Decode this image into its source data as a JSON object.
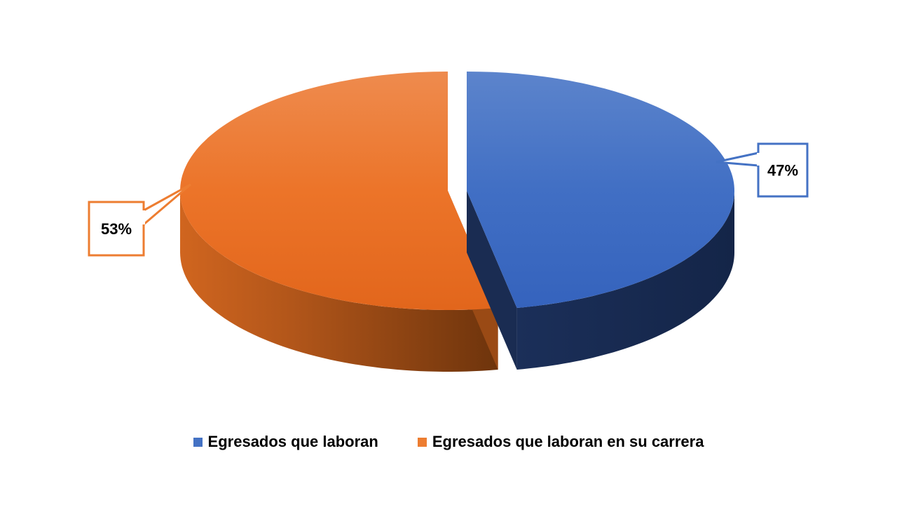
{
  "chart_data": {
    "type": "pie",
    "categories": [
      "Egresados que laboran",
      "Egresados que laboran en su carrera"
    ],
    "values": [
      47,
      53
    ],
    "data_labels": [
      "47%",
      "53%"
    ],
    "colors": [
      "#4472C4",
      "#ED7D31"
    ],
    "style": "3d-exploded",
    "legend_position": "bottom"
  }
}
